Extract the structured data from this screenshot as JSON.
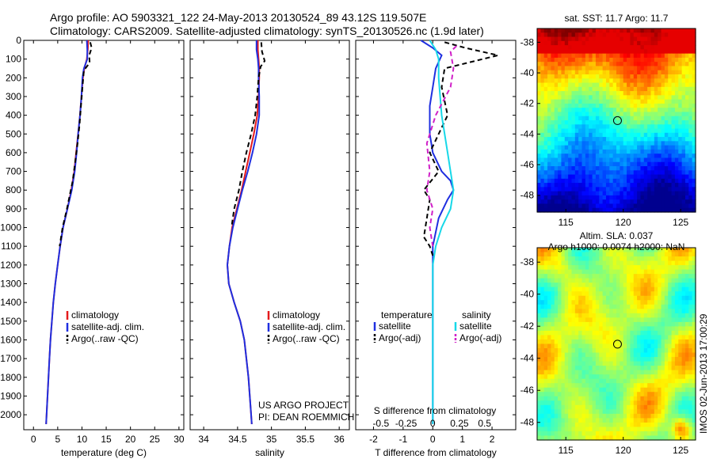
{
  "header": {
    "line1": "Argo profile: AO 5903321_122 24-May-2013 20130524_89 43.12S 119.507E",
    "line2": "Climatology: CARS2009. Satellite-adjusted climatology: synTS_20130526.nc (1.9d later)"
  },
  "footer": {
    "project": "US ARGO PROJECT",
    "pi": "PI: DEAN ROEMMICH",
    "stamp": "IMOS 02-Jun-2013 17:00:29"
  },
  "colors": {
    "climatology": "#e41a1c",
    "satellite": "#1f2fe0",
    "argo": "#000000",
    "sal_satellite": "#17d8e8",
    "sal_argo": "#d020c8"
  },
  "chart_data": [
    {
      "type": "line",
      "id": "temperature",
      "xlabel": "temperature (deg C)",
      "ylabel": "",
      "xlim": [
        -2,
        31
      ],
      "ylim": [
        2080,
        0
      ],
      "xticks": [
        0,
        5,
        10,
        15,
        20,
        25,
        30
      ],
      "yticks": [
        0,
        100,
        200,
        300,
        400,
        500,
        600,
        700,
        800,
        900,
        1000,
        1100,
        1200,
        1300,
        1400,
        1500,
        1600,
        1700,
        1800,
        1900,
        2000
      ],
      "legend": [
        "climatology",
        "satellite-adj. clim.",
        "Argo(..raw -QC)"
      ],
      "series": [
        {
          "name": "climatology",
          "x": [
            11.3,
            11.2,
            11.0,
            10.5,
            10.2,
            9.9,
            9.6,
            9.2,
            8.8,
            8.4,
            7.8,
            7.0,
            6.1,
            5.5,
            5.0,
            4.5,
            4.1,
            3.8,
            3.5,
            3.3,
            3.1,
            2.9,
            2.7,
            2.6
          ],
          "y": [
            0,
            50,
            100,
            150,
            200,
            300,
            400,
            500,
            600,
            700,
            800,
            900,
            1000,
            1100,
            1200,
            1300,
            1400,
            1500,
            1600,
            1700,
            1800,
            1900,
            2000,
            2050
          ]
        },
        {
          "name": "satellite-adj. clim.",
          "x": [
            11.0,
            11.1,
            11.1,
            10.4,
            10.1,
            9.9,
            9.6,
            9.2,
            8.9,
            8.5,
            7.9,
            7.0,
            6.1,
            5.5,
            5.0,
            4.5,
            4.1,
            3.8,
            3.5,
            3.3,
            3.1,
            2.9,
            2.7,
            2.6
          ],
          "y": [
            0,
            50,
            100,
            150,
            200,
            300,
            400,
            500,
            600,
            700,
            800,
            900,
            1000,
            1100,
            1200,
            1300,
            1400,
            1500,
            1600,
            1700,
            1800,
            1900,
            2000,
            2050
          ]
        },
        {
          "name": "Argo(..raw -QC)",
          "x": [
            11.7,
            12.0,
            11.5,
            11.6,
            10.4,
            10.1,
            9.8,
            9.5,
            9.1,
            8.6,
            8.1,
            6.9,
            6.0,
            5.4
          ],
          "y": [
            10,
            40,
            80,
            120,
            160,
            250,
            350,
            450,
            550,
            650,
            750,
            900,
            1000,
            1100
          ]
        }
      ]
    },
    {
      "type": "line",
      "id": "salinity",
      "xlabel": "salinity",
      "xlim": [
        33.8,
        36.15
      ],
      "ylim": [
        2080,
        0
      ],
      "xticks": [
        34,
        34.5,
        35,
        35.5,
        36
      ],
      "legend": [
        "climatology",
        "satellite-adj. clim.",
        "Argo(..raw -QC)"
      ],
      "series": [
        {
          "name": "climatology",
          "x": [
            34.8,
            34.8,
            34.81,
            34.82,
            34.82,
            34.81,
            34.79,
            34.74,
            34.68,
            34.62,
            34.56,
            34.49,
            34.42,
            34.38,
            34.35,
            34.37,
            34.45,
            34.54,
            34.6,
            34.63,
            34.66,
            34.68,
            34.7,
            34.71
          ],
          "y": [
            0,
            50,
            100,
            150,
            200,
            300,
            400,
            500,
            600,
            700,
            800,
            900,
            1000,
            1100,
            1200,
            1300,
            1400,
            1500,
            1600,
            1700,
            1800,
            1900,
            2000,
            2050
          ]
        },
        {
          "name": "satellite-adj. clim.",
          "x": [
            34.78,
            34.78,
            34.8,
            34.81,
            34.81,
            34.82,
            34.82,
            34.78,
            34.72,
            34.65,
            34.57,
            34.5,
            34.43,
            34.38,
            34.35,
            34.37,
            34.45,
            34.54,
            34.6,
            34.63,
            34.66,
            34.68,
            34.7,
            34.71
          ],
          "y": [
            0,
            50,
            100,
            150,
            200,
            300,
            400,
            500,
            600,
            700,
            800,
            900,
            1000,
            1100,
            1200,
            1300,
            1400,
            1500,
            1600,
            1700,
            1800,
            1900,
            2000,
            2050
          ]
        },
        {
          "name": "Argo(..raw -QC)",
          "x": [
            34.85,
            34.86,
            34.9,
            34.84,
            34.81,
            34.79,
            34.76,
            34.7,
            34.63,
            34.57,
            34.52,
            34.45,
            34.41
          ],
          "y": [
            10,
            60,
            110,
            140,
            200,
            300,
            400,
            500,
            600,
            700,
            800,
            900,
            1000
          ]
        }
      ]
    },
    {
      "type": "line",
      "id": "difference",
      "xlabel": "T difference from climatology",
      "xlabel2": "S difference from climatology",
      "xlim": [
        -2.6,
        2.8
      ],
      "ylim": [
        2080,
        0
      ],
      "xticks": [
        -2,
        -1,
        0,
        1,
        2
      ],
      "xtick_labels_s": [
        "-0.5",
        "-0.25",
        "0",
        "0.25",
        "0.5"
      ],
      "legend_left_title": "temperature",
      "legend_right_title": "salinity",
      "legend": [
        "satellite",
        "Argo(-adj)",
        "satellite",
        "Argo(-adj)"
      ],
      "series": [
        {
          "name": "T satellite",
          "x": [
            -0.4,
            0.0,
            0.3,
            0.1,
            0.0,
            -0.1,
            -0.1,
            0.0,
            0.3,
            0.6,
            0.7,
            0.5,
            0.2,
            0.0,
            0.0,
            0.0,
            0.0,
            0.0,
            0.0,
            0.0,
            0.0,
            0.0,
            0.0
          ],
          "y": [
            0,
            40,
            80,
            150,
            250,
            350,
            500,
            600,
            700,
            750,
            800,
            850,
            950,
            1100,
            1200,
            1300,
            1400,
            1500,
            1600,
            1700,
            1800,
            1900,
            2050
          ]
        },
        {
          "name": "T Argo(-adj)",
          "x": [
            0.4,
            1.1,
            2.2,
            0.4,
            0.3,
            0.5,
            0.2,
            -0.1,
            0.2,
            -0.3,
            -0.1,
            -0.2,
            -0.3,
            -0.1,
            0.0
          ],
          "y": [
            10,
            40,
            80,
            150,
            250,
            400,
            500,
            600,
            700,
            800,
            850,
            950,
            1050,
            1100,
            1150
          ]
        },
        {
          "name": "S satellite",
          "x": [
            -0.1,
            0.1,
            0.2,
            0.2,
            0.3,
            0.5,
            0.6,
            0.7,
            0.6,
            0.3,
            0.1,
            0.0,
            0.0,
            0.0,
            0.0,
            0.0,
            0.0,
            0.0,
            0.0,
            0.0
          ],
          "y": [
            0,
            50,
            100,
            200,
            400,
            600,
            700,
            800,
            900,
            1000,
            1100,
            1200,
            1300,
            1400,
            1500,
            1600,
            1700,
            1800,
            1900,
            2050
          ]
        },
        {
          "name": "S Argo(-adj)",
          "x": [
            0.8,
            0.6,
            0.7,
            0.6,
            0.1,
            -0.2,
            -0.1,
            -0.2,
            0.0,
            -0.1,
            0.0
          ],
          "y": [
            30,
            60,
            150,
            250,
            400,
            550,
            700,
            800,
            900,
            1000,
            1100
          ]
        }
      ]
    },
    {
      "type": "heatmap",
      "id": "sst_map",
      "title": "sat. SST: 11.7 Argo: 11.7",
      "xlim": [
        112.5,
        126.3
      ],
      "ylim": [
        -49.1,
        -37.1
      ],
      "xticks": [
        115,
        120,
        125
      ],
      "yticks": [
        -38,
        -40,
        -42,
        -44,
        -46,
        -48
      ],
      "marker": {
        "lon": 119.5,
        "lat": -43.12
      },
      "colormap": "jet"
    },
    {
      "type": "heatmap",
      "id": "sla_map",
      "title": "Altim. SLA: 0.037",
      "subtitle": "Argo h1000: 0.0074 h2000: NaN",
      "xlim": [
        112.5,
        126.3
      ],
      "ylim": [
        -49.1,
        -37.1
      ],
      "xticks": [
        115,
        120,
        125
      ],
      "yticks": [
        -38,
        -40,
        -42,
        -44,
        -46,
        -48
      ],
      "marker": {
        "lon": 119.5,
        "lat": -43.12
      },
      "colormap": "jet"
    }
  ]
}
